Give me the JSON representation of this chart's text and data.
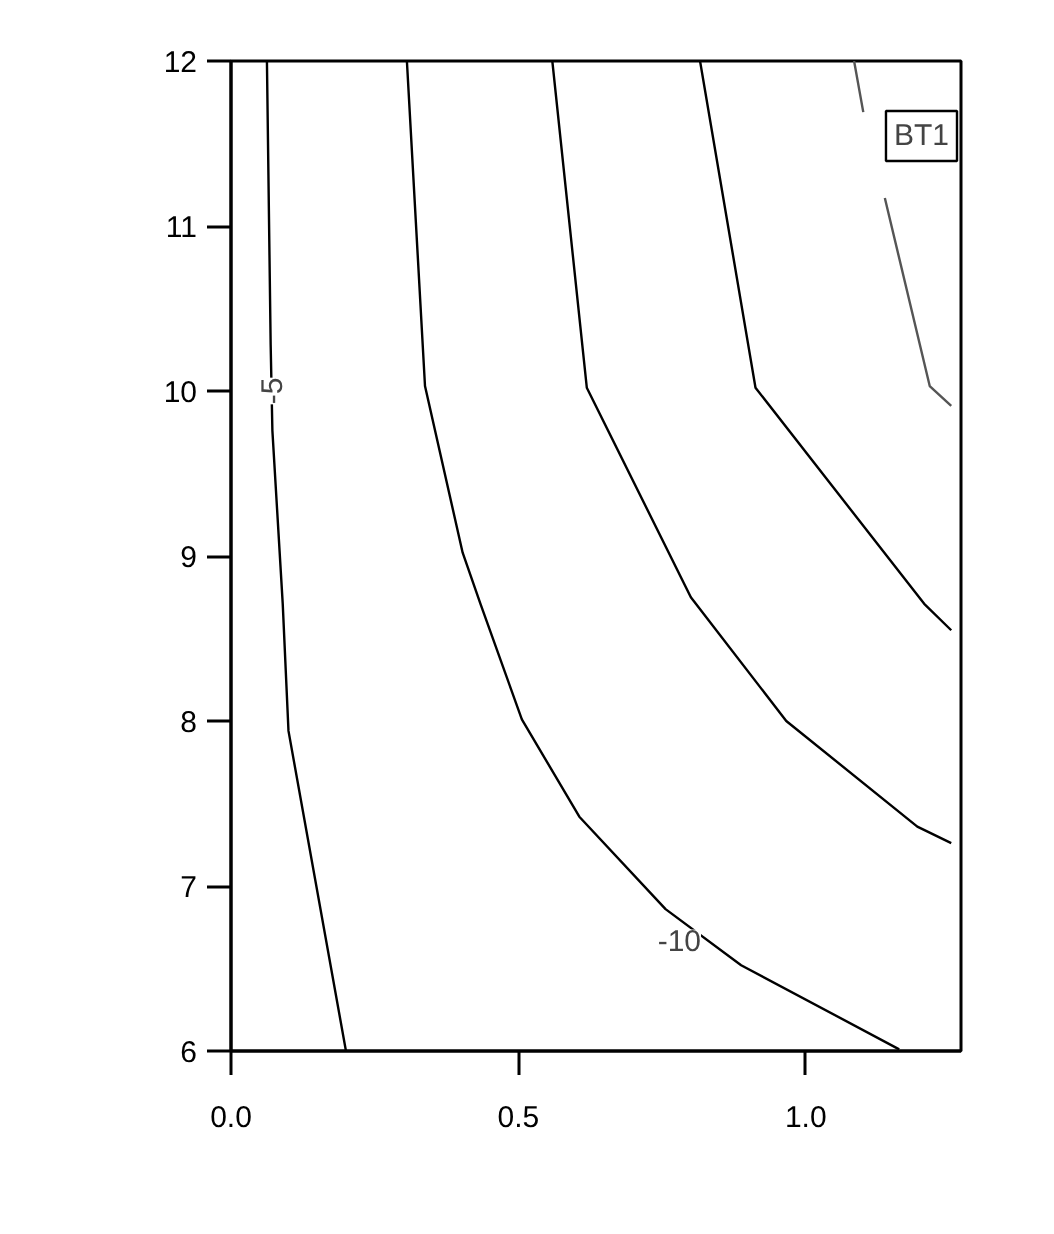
{
  "chart_data": {
    "type": "line",
    "series": [
      {
        "color": "#000000",
        "x": [
          0.0625,
          0.069,
          0.072,
          0.09,
          0.1,
          0.2
        ],
        "values": [
          12.0,
          10.28,
          9.76,
          8.71,
          7.94,
          6.0
        ]
      },
      {
        "color": "#000000",
        "x": [
          0.306,
          0.3375,
          0.403,
          0.434,
          0.506,
          0.606,
          0.756,
          0.8875,
          1.1625
        ],
        "values": [
          12.0,
          10.03,
          9.02,
          8.71,
          8.01,
          7.42,
          6.86,
          6.52,
          6.01
        ]
      },
      {
        "color": "#000000",
        "x": [
          0.559,
          0.619,
          0.8,
          0.966,
          1.194,
          1.253
        ],
        "values": [
          12.0,
          10.02,
          8.75,
          8.0,
          7.36,
          7.26
        ]
      },
      {
        "color": "#000000",
        "x": [
          0.816,
          0.9125,
          1.206,
          1.253
        ],
        "values": [
          12.0,
          10.02,
          8.71,
          8.55
        ]
      },
      {
        "color": "#555555",
        "x": [
          1.084,
          1.1,
          1.12,
          1.1375,
          1.2156,
          1.253
        ],
        "values": [
          12.0,
          11.69,
          null,
          11.17,
          10.03,
          9.91
        ]
      }
    ],
    "annotations": [
      {
        "text": "-5",
        "x": 0.07,
        "y": 10.0
      },
      {
        "text": "-10",
        "x": 0.78,
        "y": 6.67
      },
      "BT1"
    ],
    "xlim": [
      0,
      1.27
    ],
    "ylim": [
      6,
      12
    ],
    "xticks": [
      {
        "value": 0,
        "label": "0.0"
      },
      0.5,
      {
        "value": 1,
        "label": "1.0"
      }
    ],
    "yticks": [
      6,
      7,
      8,
      9,
      10,
      11,
      12
    ],
    "grid": false,
    "marker": "none",
    "line_style": "solid"
  }
}
